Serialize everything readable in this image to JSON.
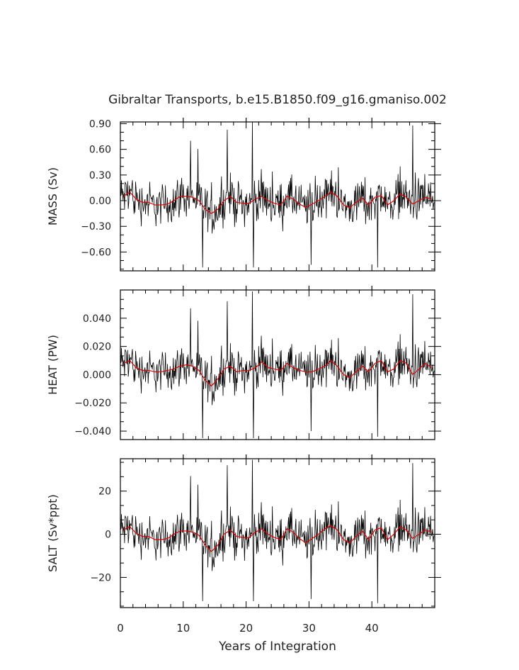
{
  "chart_data": {
    "type": "line",
    "title": "Gibraltar Transports, b.e15.B1850.f09_g16.gmaniso.002",
    "xlabel": "Years of Integration",
    "xlim": [
      0,
      50
    ],
    "xticks": [
      0,
      10,
      20,
      30,
      40
    ],
    "x_tick_labels": [
      "0",
      "10",
      "20",
      "30",
      "40"
    ],
    "series_colors": {
      "monthly": "#000000",
      "annual_mean": "#e00000"
    },
    "panels": [
      {
        "ylabel": "MASS (Sv)",
        "ylim": [
          -0.82,
          0.92
        ],
        "yticks": [
          0.9,
          0.6,
          0.3,
          0.0,
          -0.3,
          -0.6
        ],
        "ytick_labels": [
          "0.90",
          "0.60",
          "0.30",
          "0.00",
          "−0.30",
          "−0.60"
        ],
        "monthly_amplitude": 0.18,
        "spikes": [
          [
            11.2,
            0.7
          ],
          [
            17.0,
            0.83
          ],
          [
            21.0,
            0.92
          ],
          [
            46.5,
            0.88
          ],
          [
            13.1,
            -0.78
          ],
          [
            21.2,
            -0.78
          ],
          [
            30.3,
            -0.75
          ],
          [
            40.9,
            -0.78
          ]
        ],
        "annual_mean": [
          0.05,
          0.1,
          0.02,
          -0.02,
          -0.02,
          -0.05,
          -0.05,
          -0.04,
          0.0,
          0.05,
          0.05,
          0.04,
          0.0,
          -0.1,
          -0.15,
          -0.1,
          0.0,
          0.05,
          -0.02,
          -0.03,
          -0.03,
          0.02,
          0.05,
          0.0,
          -0.03,
          -0.05,
          0.05,
          0.02,
          -0.04,
          -0.08,
          -0.04,
          0.0,
          0.05,
          0.1,
          0.05,
          -0.05,
          -0.08,
          -0.02,
          0.03,
          -0.05,
          0.04,
          0.06,
          -0.05,
          0.0,
          0.08,
          0.04,
          -0.04,
          0.0,
          0.04,
          0.02
        ]
      },
      {
        "ylabel": "HEAT (PW)",
        "ylim": [
          -0.046,
          0.06
        ],
        "yticks": [
          0.04,
          0.02,
          0.0,
          -0.02,
          -0.04
        ],
        "ytick_labels": [
          "0.040",
          "0.020",
          "0.000",
          "−0.020",
          "−0.040"
        ],
        "monthly_amplitude": 0.0105,
        "spikes": [
          [
            11.2,
            0.047
          ],
          [
            17.0,
            0.052
          ],
          [
            21.0,
            0.059
          ],
          [
            46.5,
            0.057
          ],
          [
            13.1,
            -0.045
          ],
          [
            21.2,
            -0.045
          ],
          [
            30.3,
            -0.04
          ],
          [
            40.9,
            -0.044
          ]
        ],
        "annual_mean": [
          0.008,
          0.01,
          0.005,
          0.003,
          0.003,
          0.002,
          0.002,
          0.003,
          0.004,
          0.006,
          0.007,
          0.006,
          0.003,
          -0.004,
          -0.008,
          -0.003,
          0.004,
          0.006,
          0.002,
          0.003,
          0.003,
          0.005,
          0.009,
          0.005,
          0.004,
          0.003,
          0.008,
          0.005,
          0.003,
          0.002,
          0.002,
          0.004,
          0.006,
          0.01,
          0.006,
          0.0,
          -0.002,
          0.002,
          0.006,
          0.002,
          0.008,
          0.01,
          0.002,
          0.004,
          0.01,
          0.008,
          0.0,
          0.004,
          0.008,
          0.005
        ]
      },
      {
        "ylabel": "SALT (Sv*ppt)",
        "ylim": [
          -34,
          35
        ],
        "yticks": [
          20,
          0,
          -20
        ],
        "ytick_labels": [
          "20",
          "0",
          "−20"
        ],
        "monthly_amplitude": 7,
        "spikes": [
          [
            11.2,
            27
          ],
          [
            17.0,
            32
          ],
          [
            21.0,
            34.5
          ],
          [
            46.5,
            33
          ],
          [
            13.1,
            -31
          ],
          [
            21.2,
            -31
          ],
          [
            30.3,
            -30
          ],
          [
            40.9,
            -32
          ]
        ],
        "annual_mean": [
          2,
          3.5,
          0.5,
          -1,
          -1,
          -2.5,
          -2.5,
          -2,
          0,
          1.5,
          1.5,
          1,
          -0.5,
          -5,
          -8,
          -5,
          0,
          2,
          -1,
          -1.5,
          -1.5,
          1,
          2.5,
          0,
          -1.5,
          -2.5,
          2.5,
          1,
          -2,
          -4,
          -2,
          0,
          2.5,
          4,
          2,
          -2.5,
          -4,
          -1,
          1.5,
          -2.5,
          2,
          3,
          -2.5,
          0,
          3.5,
          2,
          -2,
          0,
          2,
          1
        ]
      }
    ]
  }
}
